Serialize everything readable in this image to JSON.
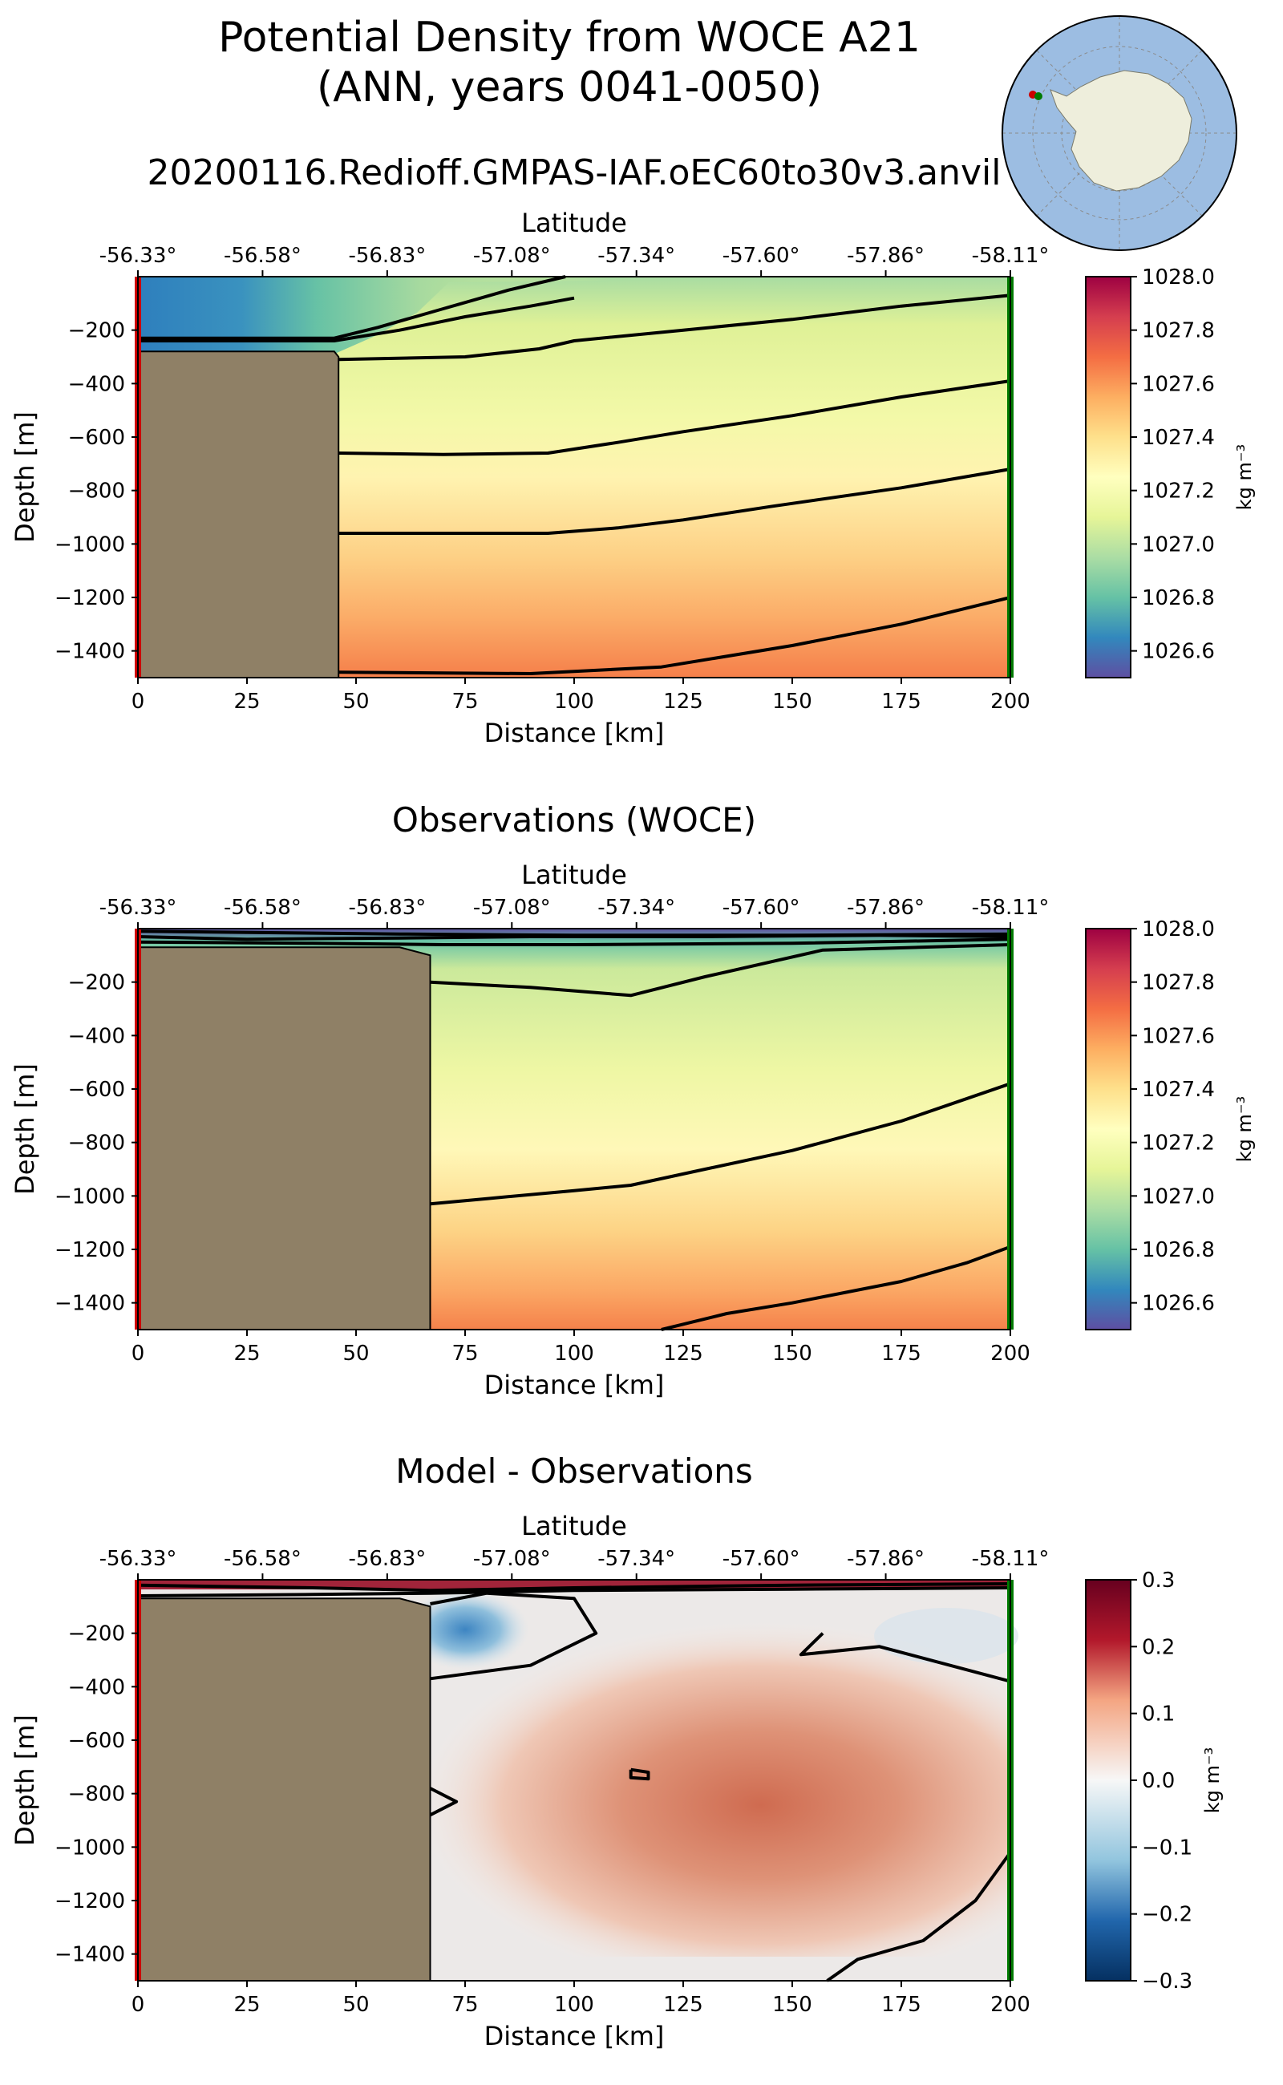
{
  "figure": {
    "title_line1": "Potential Density from WOCE A21",
    "title_line2": "(ANN, years 0041-0050)",
    "run_name": "20200116.Redioff.GMPAS-IAF.oEC60to30v3.anvil"
  },
  "colors": {
    "land": "#8f8066",
    "ocean_inset": "#9cbde2",
    "antarctica": "#eeeedc",
    "left_edge": "#cc0000",
    "right_edge": "#007a00"
  },
  "chart_data": [
    {
      "type": "heatmap",
      "title": "",
      "xlabel": "Distance [km]",
      "ylabel": "Depth [m]",
      "top_axis_label": "Latitude",
      "x_ticks": [
        "0",
        "25",
        "50",
        "75",
        "100",
        "125",
        "150",
        "175",
        "200"
      ],
      "lat_ticks": [
        "-56.33°",
        "-56.58°",
        "-56.83°",
        "-57.08°",
        "-57.34°",
        "-57.60°",
        "-57.86°",
        "-58.11°"
      ],
      "y_ticks": [
        "−200",
        "−400",
        "−600",
        "−800",
        "−1000",
        "−1200",
        "−1400"
      ],
      "xlim": [
        0,
        200
      ],
      "ylim": [
        -1500,
        0
      ],
      "colorbar": {
        "label": "kg m⁻³",
        "range": [
          1026.5,
          1028.0
        ],
        "ticks": [
          "1028.0",
          "1027.8",
          "1027.6",
          "1027.4",
          "1027.2",
          "1027.0",
          "1026.8",
          "1026.6"
        ],
        "colormap": "Spectral_r"
      },
      "land": [
        [
          0,
          -280
        ],
        [
          45,
          -280
        ],
        [
          46,
          -300
        ],
        [
          46,
          -1500
        ],
        [
          0,
          -1500
        ]
      ],
      "contours": [
        [
          [
            0,
            -230
          ],
          [
            45,
            -230
          ],
          [
            55,
            -190
          ],
          [
            70,
            -120
          ],
          [
            85,
            -50
          ],
          [
            98,
            0
          ]
        ],
        [
          [
            0,
            -240
          ],
          [
            45,
            -240
          ],
          [
            60,
            -200
          ],
          [
            75,
            -150
          ],
          [
            90,
            -110
          ],
          [
            100,
            -80
          ]
        ],
        [
          [
            46,
            -310
          ],
          [
            75,
            -300
          ],
          [
            92,
            -270
          ],
          [
            100,
            -240
          ],
          [
            125,
            -200
          ],
          [
            150,
            -160
          ],
          [
            175,
            -110
          ],
          [
            200,
            -70
          ]
        ],
        [
          [
            46,
            -660
          ],
          [
            70,
            -665
          ],
          [
            94,
            -660
          ],
          [
            110,
            -620
          ],
          [
            125,
            -580
          ],
          [
            150,
            -520
          ],
          [
            175,
            -450
          ],
          [
            200,
            -390
          ]
        ],
        [
          [
            46,
            -960
          ],
          [
            70,
            -960
          ],
          [
            94,
            -960
          ],
          [
            110,
            -940
          ],
          [
            125,
            -910
          ],
          [
            145,
            -860
          ],
          [
            175,
            -790
          ],
          [
            200,
            -720
          ]
        ],
        [
          [
            46,
            -1480
          ],
          [
            90,
            -1485
          ],
          [
            120,
            -1460
          ],
          [
            150,
            -1380
          ],
          [
            175,
            -1300
          ],
          [
            200,
            -1200
          ]
        ]
      ]
    },
    {
      "type": "heatmap",
      "title": "Observations (WOCE)",
      "xlabel": "Distance [km]",
      "ylabel": "Depth [m]",
      "top_axis_label": "Latitude",
      "x_ticks": [
        "0",
        "25",
        "50",
        "75",
        "100",
        "125",
        "150",
        "175",
        "200"
      ],
      "lat_ticks": [
        "-56.33°",
        "-56.58°",
        "-56.83°",
        "-57.08°",
        "-57.34°",
        "-57.60°",
        "-57.86°",
        "-58.11°"
      ],
      "y_ticks": [
        "−200",
        "−400",
        "−600",
        "−800",
        "−1000",
        "−1200",
        "−1400"
      ],
      "xlim": [
        0,
        200
      ],
      "ylim": [
        -1500,
        0
      ],
      "colorbar": {
        "label": "kg m⁻³",
        "range": [
          1026.5,
          1028.0
        ],
        "ticks": [
          "1028.0",
          "1027.8",
          "1027.6",
          "1027.4",
          "1027.2",
          "1027.0",
          "1026.8",
          "1026.6"
        ],
        "colormap": "Spectral_r"
      },
      "land": [
        [
          0,
          -70
        ],
        [
          60,
          -70
        ],
        [
          67,
          -100
        ],
        [
          67,
          -1500
        ],
        [
          0,
          -1500
        ]
      ],
      "contours": [
        [
          [
            0,
            -10
          ],
          [
            30,
            -15
          ],
          [
            60,
            -20
          ],
          [
            100,
            -25
          ],
          [
            150,
            -25
          ],
          [
            200,
            -20
          ]
        ],
        [
          [
            0,
            -30
          ],
          [
            25,
            -40
          ],
          [
            60,
            -35
          ],
          [
            90,
            -30
          ],
          [
            130,
            -30
          ],
          [
            170,
            -25
          ],
          [
            200,
            -30
          ]
        ],
        [
          [
            0,
            -50
          ],
          [
            40,
            -55
          ],
          [
            70,
            -60
          ],
          [
            100,
            -60
          ],
          [
            150,
            -55
          ],
          [
            200,
            -40
          ]
        ],
        [
          [
            67,
            -200
          ],
          [
            90,
            -220
          ],
          [
            113,
            -250
          ],
          [
            130,
            -180
          ],
          [
            157,
            -80
          ],
          [
            200,
            -60
          ]
        ],
        [
          [
            67,
            -1030
          ],
          [
            80,
            -1010
          ],
          [
            100,
            -980
          ],
          [
            113,
            -960
          ],
          [
            130,
            -900
          ],
          [
            150,
            -830
          ],
          [
            175,
            -720
          ],
          [
            200,
            -580
          ]
        ],
        [
          [
            120,
            -1500
          ],
          [
            135,
            -1440
          ],
          [
            150,
            -1400
          ],
          [
            175,
            -1320
          ],
          [
            190,
            -1250
          ],
          [
            200,
            -1190
          ]
        ]
      ]
    },
    {
      "type": "heatmap",
      "title": "Model - Observations",
      "xlabel": "Distance [km]",
      "ylabel": "Depth [m]",
      "top_axis_label": "Latitude",
      "x_ticks": [
        "0",
        "25",
        "50",
        "75",
        "100",
        "125",
        "150",
        "175",
        "200"
      ],
      "lat_ticks": [
        "-56.33°",
        "-56.58°",
        "-56.83°",
        "-57.08°",
        "-57.34°",
        "-57.60°",
        "-57.86°",
        "-58.11°"
      ],
      "y_ticks": [
        "−200",
        "−400",
        "−600",
        "−800",
        "−1000",
        "−1200",
        "−1400"
      ],
      "xlim": [
        0,
        200
      ],
      "ylim": [
        -1500,
        0
      ],
      "colorbar": {
        "label": "kg m⁻³",
        "range": [
          -0.3,
          0.3
        ],
        "ticks": [
          "0.3",
          "0.2",
          "0.1",
          "0.0",
          "−0.1",
          "−0.2",
          "−0.3"
        ],
        "colormap": "RdBu_r"
      },
      "land": [
        [
          0,
          -70
        ],
        [
          60,
          -70
        ],
        [
          67,
          -100
        ],
        [
          67,
          -1500
        ],
        [
          0,
          -1500
        ]
      ],
      "contours": [
        [
          [
            0,
            -20
          ],
          [
            40,
            -30
          ],
          [
            67,
            -40
          ],
          [
            100,
            -30
          ],
          [
            150,
            -20
          ],
          [
            200,
            -15
          ]
        ],
        [
          [
            0,
            -60
          ],
          [
            40,
            -55
          ],
          [
            67,
            -50
          ],
          [
            100,
            -40
          ],
          [
            150,
            -35
          ],
          [
            200,
            -30
          ]
        ],
        [
          [
            67,
            -90
          ],
          [
            80,
            -50
          ],
          [
            100,
            -70
          ],
          [
            105,
            -200
          ],
          [
            90,
            -320
          ],
          [
            67,
            -370
          ]
        ],
        [
          [
            157,
            -200
          ],
          [
            152,
            -280
          ],
          [
            170,
            -250
          ],
          [
            200,
            -380
          ]
        ],
        [
          [
            113,
            -710
          ],
          [
            117,
            -720
          ],
          [
            117,
            -745
          ],
          [
            113,
            -740
          ],
          [
            113,
            -710
          ]
        ],
        [
          [
            67,
            -780
          ],
          [
            73,
            -830
          ],
          [
            67,
            -880
          ]
        ],
        [
          [
            200,
            -1020
          ],
          [
            192,
            -1200
          ],
          [
            180,
            -1350
          ],
          [
            165,
            -1420
          ],
          [
            158,
            -1500
          ]
        ]
      ]
    }
  ]
}
